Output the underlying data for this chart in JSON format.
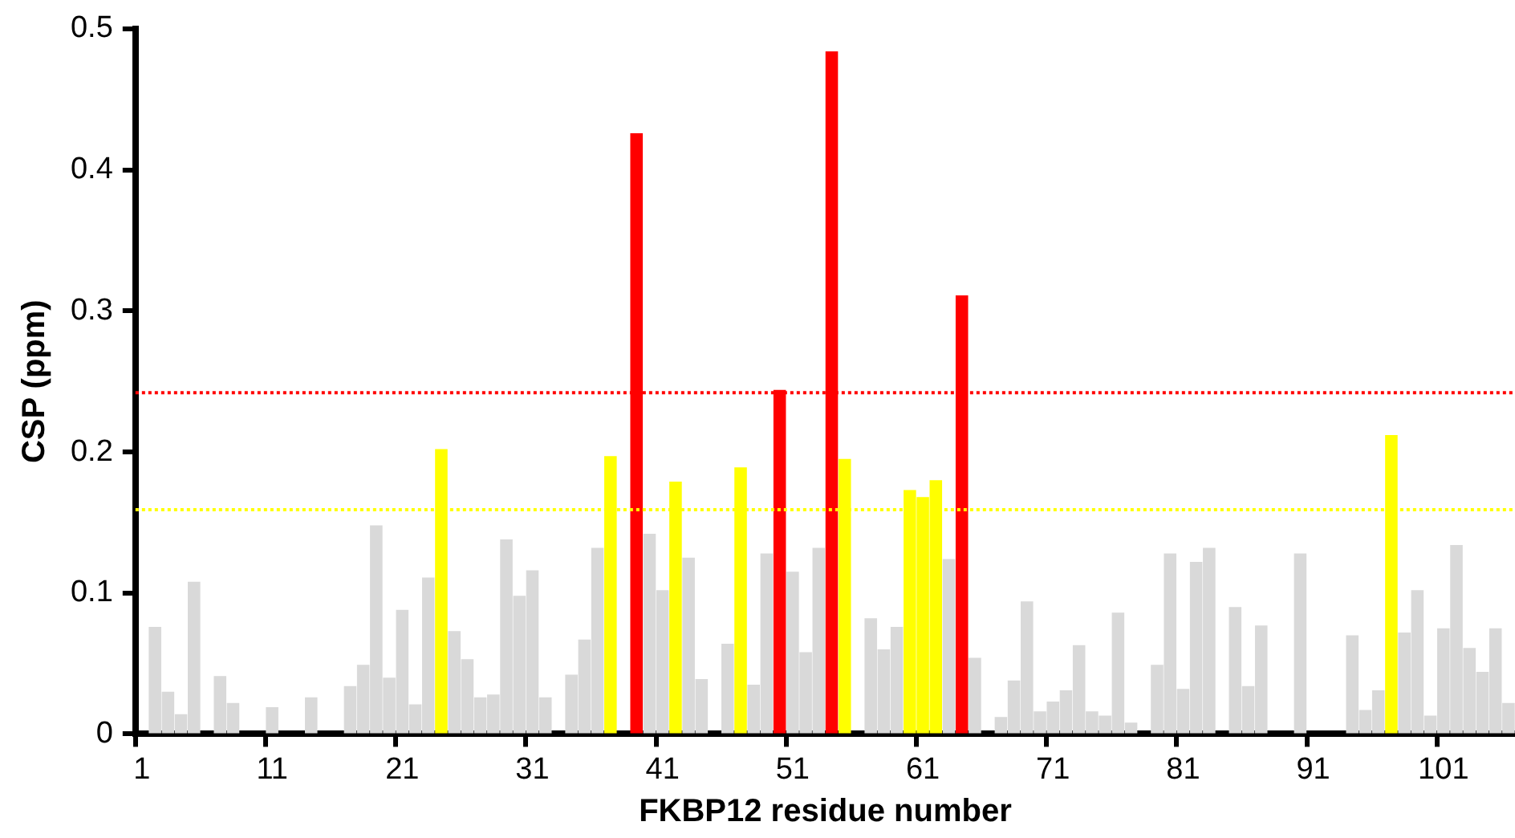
{
  "chart_data": {
    "type": "bar",
    "xlabel": "FKBP12 residue number",
    "ylabel": "CSP (ppm)",
    "categories": [
      "1",
      null,
      null,
      null,
      null,
      null,
      null,
      null,
      null,
      null,
      "11",
      null,
      null,
      null,
      null,
      null,
      null,
      null,
      null,
      null,
      "21",
      null,
      null,
      null,
      null,
      null,
      null,
      null,
      null,
      null,
      "31",
      null,
      null,
      null,
      null,
      null,
      null,
      null,
      null,
      null,
      "41",
      null,
      null,
      null,
      null,
      null,
      null,
      null,
      null,
      null,
      "51",
      null,
      null,
      null,
      null,
      null,
      null,
      null,
      null,
      null,
      "61",
      null,
      null,
      null,
      null,
      null,
      null,
      null,
      null,
      null,
      "71",
      null,
      null,
      null,
      null,
      null,
      null,
      null,
      null,
      null,
      "81",
      null,
      null,
      null,
      null,
      null,
      null,
      null,
      null,
      null,
      "91",
      null,
      null,
      null,
      null,
      null,
      null,
      null,
      null,
      null,
      "101",
      null,
      null,
      null,
      null,
      null
    ],
    "values": [
      null,
      0.076,
      0.03,
      0.014,
      0.108,
      null,
      0.041,
      0.022,
      null,
      null,
      0.019,
      null,
      null,
      0.026,
      null,
      null,
      0.034,
      0.049,
      0.148,
      0.04,
      0.088,
      0.021,
      0.111,
      0.202,
      0.073,
      0.053,
      0.026,
      0.028,
      0.138,
      0.098,
      0.116,
      0.026,
      null,
      0.042,
      0.067,
      0.132,
      0.197,
      null,
      0.426,
      0.142,
      0.102,
      0.179,
      0.125,
      0.039,
      null,
      0.064,
      0.189,
      0.035,
      0.128,
      0.244,
      0.115,
      0.058,
      0.132,
      0.484,
      0.195,
      null,
      0.082,
      0.06,
      0.076,
      0.173,
      0.168,
      0.18,
      0.124,
      0.311,
      0.054,
      null,
      0.012,
      0.038,
      0.094,
      0.016,
      0.023,
      0.031,
      0.063,
      0.016,
      0.013,
      0.086,
      0.008,
      null,
      0.049,
      0.128,
      0.032,
      0.122,
      0.132,
      null,
      0.09,
      0.034,
      0.077,
      null,
      null,
      0.128,
      null,
      null,
      null,
      0.07,
      0.017,
      0.031,
      0.212,
      0.072,
      0.102,
      0.013,
      0.075,
      0.134,
      0.061,
      0.044,
      0.075,
      0.022
    ],
    "colors": [
      "#d9d9d9",
      "#d9d9d9",
      "#d9d9d9",
      "#d9d9d9",
      "#d9d9d9",
      "#d9d9d9",
      "#d9d9d9",
      "#d9d9d9",
      "#d9d9d9",
      "#d9d9d9",
      "#d9d9d9",
      "#d9d9d9",
      "#d9d9d9",
      "#d9d9d9",
      "#d9d9d9",
      "#d9d9d9",
      "#d9d9d9",
      "#d9d9d9",
      "#d9d9d9",
      "#d9d9d9",
      "#d9d9d9",
      "#d9d9d9",
      "#d9d9d9",
      "#ffff00",
      "#d9d9d9",
      "#d9d9d9",
      "#d9d9d9",
      "#d9d9d9",
      "#d9d9d9",
      "#d9d9d9",
      "#d9d9d9",
      "#d9d9d9",
      "#d9d9d9",
      "#d9d9d9",
      "#d9d9d9",
      "#d9d9d9",
      "#ffff00",
      "#d9d9d9",
      "#ff0000",
      "#d9d9d9",
      "#d9d9d9",
      "#ffff00",
      "#d9d9d9",
      "#d9d9d9",
      "#d9d9d9",
      "#d9d9d9",
      "#ffff00",
      "#d9d9d9",
      "#d9d9d9",
      "#ff0000",
      "#d9d9d9",
      "#d9d9d9",
      "#d9d9d9",
      "#ff0000",
      "#ffff00",
      "#d9d9d9",
      "#d9d9d9",
      "#d9d9d9",
      "#d9d9d9",
      "#ffff00",
      "#ffff00",
      "#ffff00",
      "#d9d9d9",
      "#ff0000",
      "#d9d9d9",
      "#d9d9d9",
      "#d9d9d9",
      "#d9d9d9",
      "#d9d9d9",
      "#d9d9d9",
      "#d9d9d9",
      "#d9d9d9",
      "#d9d9d9",
      "#d9d9d9",
      "#d9d9d9",
      "#d9d9d9",
      "#d9d9d9",
      "#d9d9d9",
      "#d9d9d9",
      "#d9d9d9",
      "#d9d9d9",
      "#d9d9d9",
      "#d9d9d9",
      "#d9d9d9",
      "#d9d9d9",
      "#d9d9d9",
      "#d9d9d9",
      "#d9d9d9",
      "#d9d9d9",
      "#d9d9d9",
      "#d9d9d9",
      "#d9d9d9",
      "#d9d9d9",
      "#d9d9d9",
      "#d9d9d9",
      "#d9d9d9",
      "#ffff00",
      "#d9d9d9",
      "#d9d9d9",
      "#d9d9d9",
      "#d9d9d9",
      "#d9d9d9",
      "#d9d9d9",
      "#d9d9d9",
      "#d9d9d9",
      "#d9d9d9"
    ],
    "ylim": [
      0,
      0.5
    ],
    "yticks": [
      0,
      0.1,
      0.2,
      0.3,
      0.4,
      0.5
    ],
    "grid": false,
    "legend": false,
    "ref_lines": [
      {
        "axis": "y",
        "value": 0.242,
        "color": "#ff0000",
        "line_style": "dotted"
      },
      {
        "axis": "y",
        "value": 0.159,
        "color": "#ffff00",
        "line_style": "dotted"
      }
    ]
  }
}
